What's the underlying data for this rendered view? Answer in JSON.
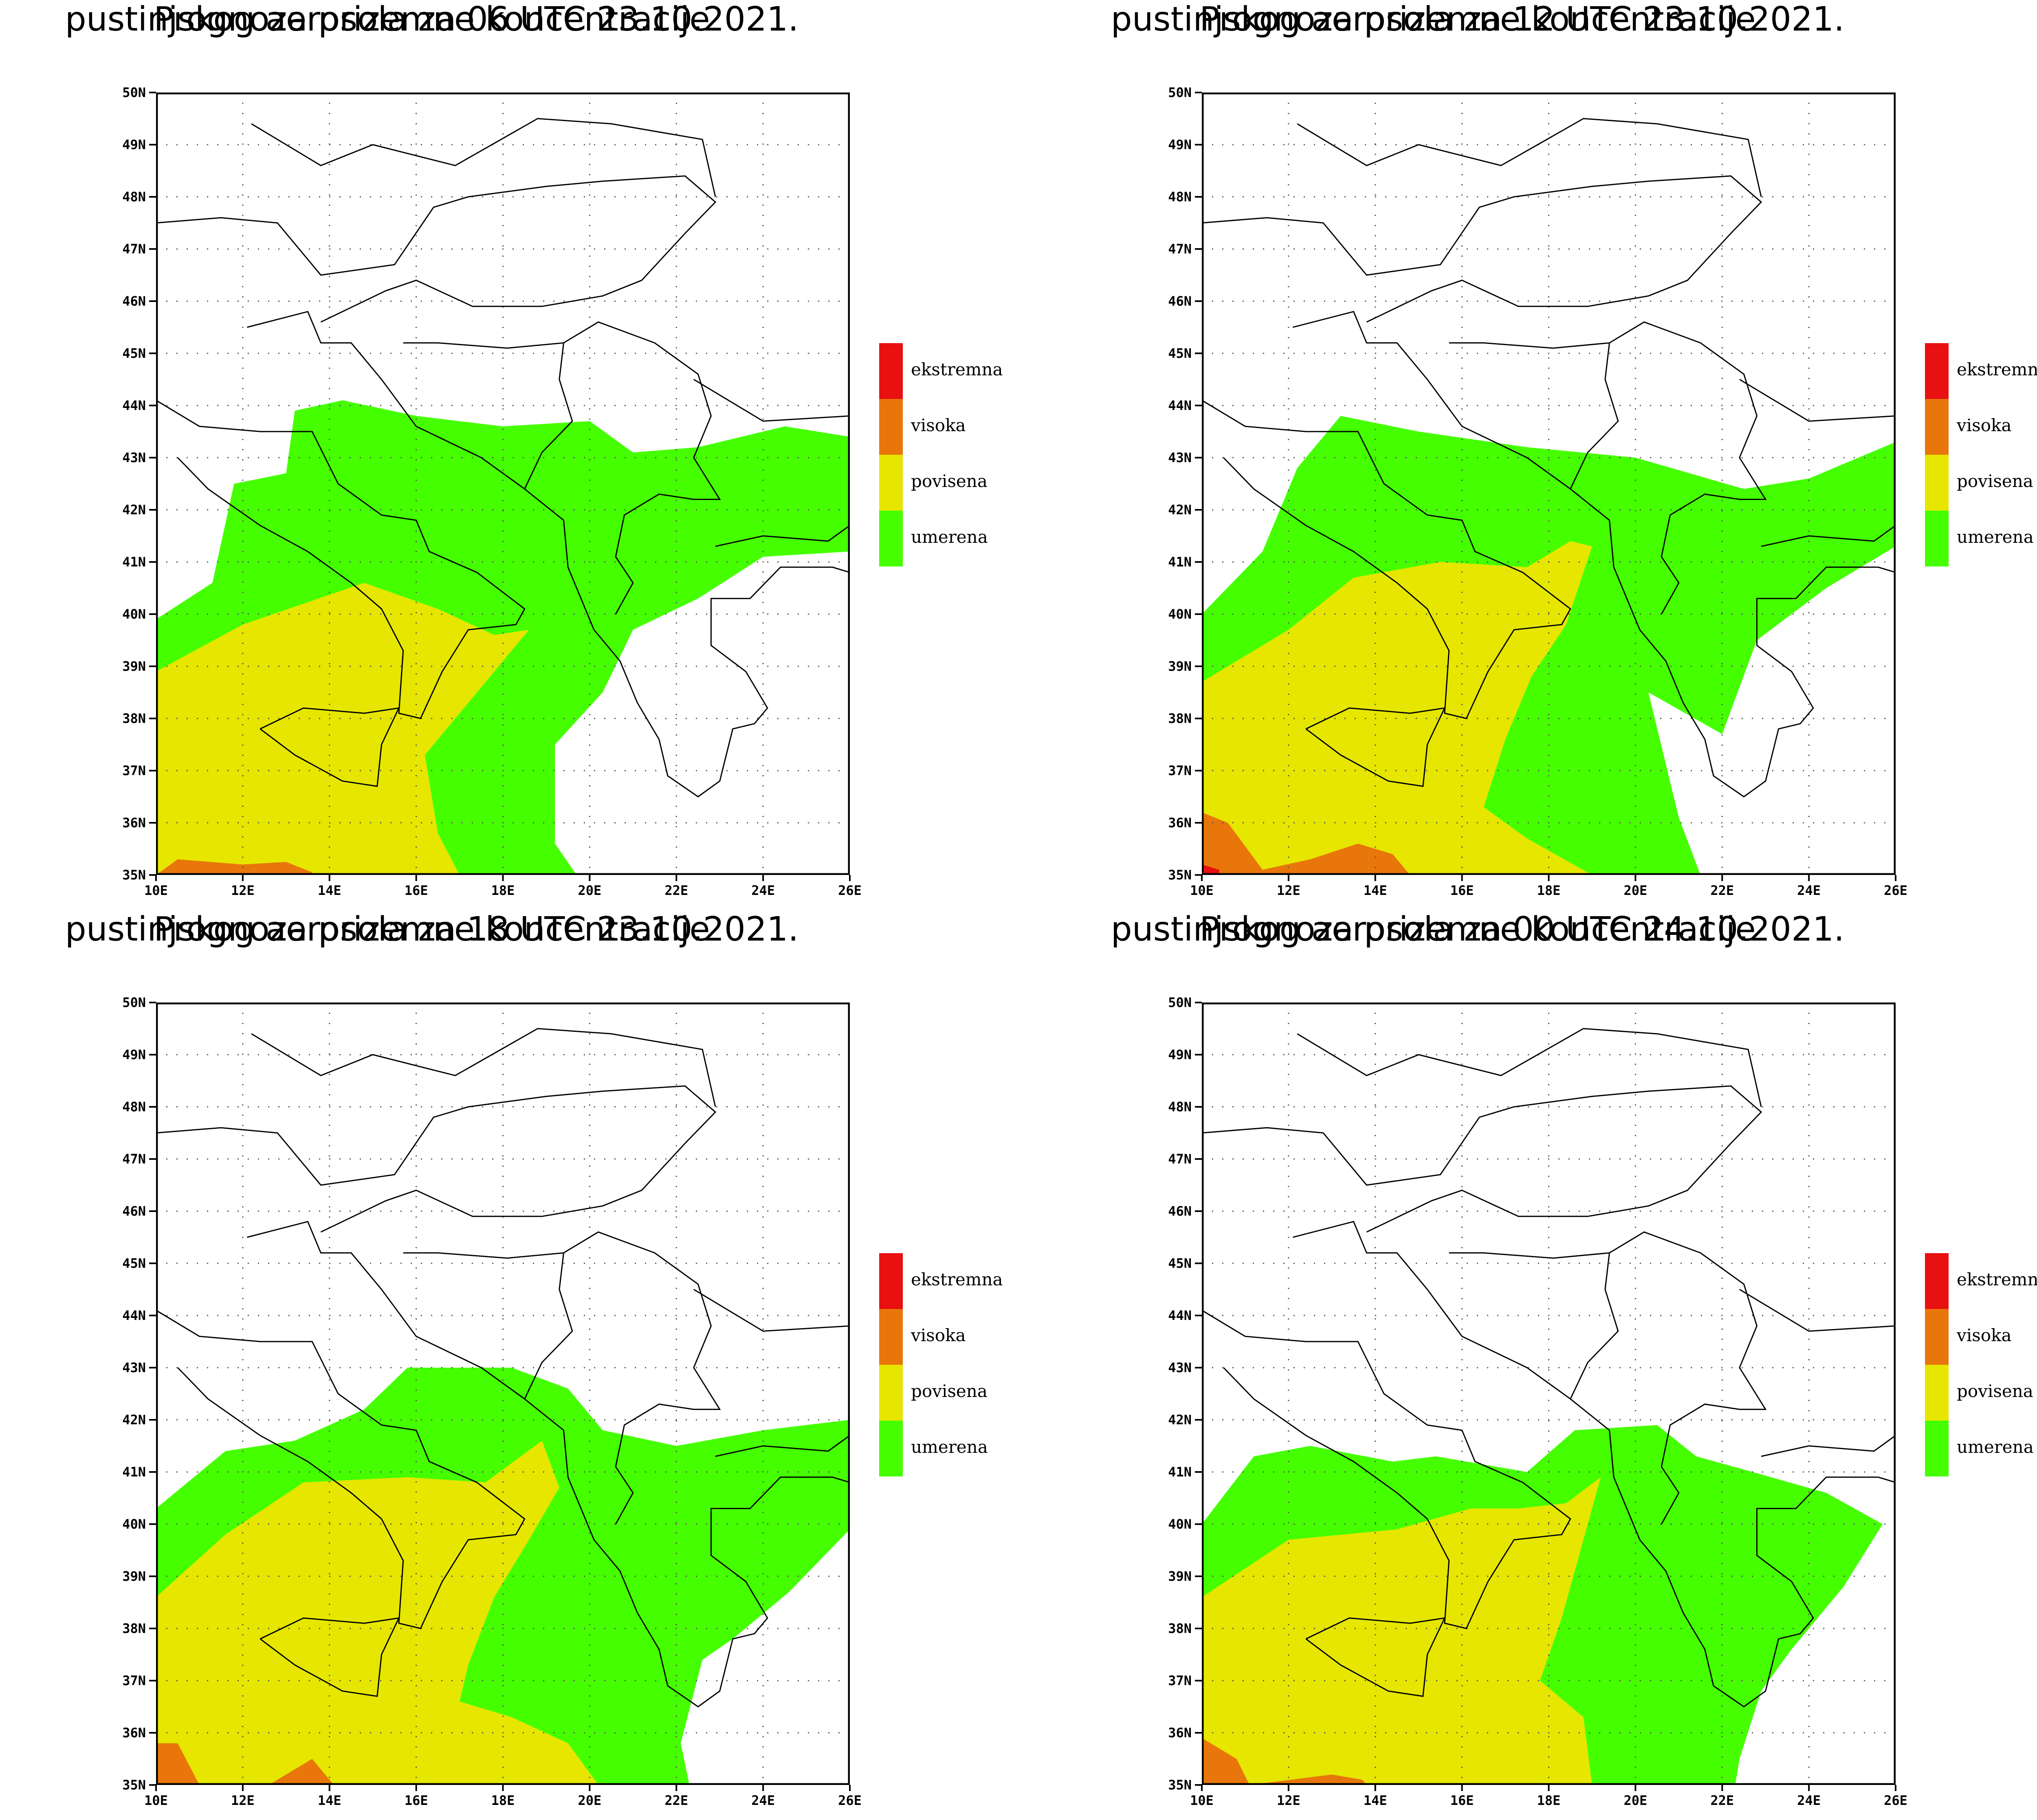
{
  "colors": {
    "ekstremna": "#E81010",
    "visoka": "#E8760A",
    "povisena": "#E6E600",
    "umerena": "#45FF00"
  },
  "legend": [
    {
      "key": "ekstremna",
      "label": "ekstremna"
    },
    {
      "key": "visoka",
      "label": "visoka"
    },
    {
      "key": "povisena",
      "label": "povisena"
    },
    {
      "key": "umerena",
      "label": "umerena"
    }
  ],
  "axes": {
    "lat_labels": [
      "50N",
      "49N",
      "48N",
      "47N",
      "46N",
      "45N",
      "44N",
      "43N",
      "42N",
      "41N",
      "40N",
      "39N",
      "38N",
      "37N",
      "36N",
      "35N"
    ],
    "lon_labels": [
      "10E",
      "12E",
      "14E",
      "16E",
      "18E",
      "20E",
      "22E",
      "24E",
      "26E"
    ]
  },
  "panels": [
    {
      "title_line1": "Prognoza prizemne koncentracije",
      "title_line2": "pustinjskog aerosola za 06 UTC 23.10.2021."
    },
    {
      "title_line1": "Prognoza prizemne koncentracije",
      "title_line2": "pustinjskog aerosola za 12 UTC 23.10.2021."
    },
    {
      "title_line1": "Prognoza prizemne koncentracije",
      "title_line2": "pustinjskog aerosola za 18 UTC 23.10.2021."
    },
    {
      "title_line1": "Prognoza prizemne koncentracije",
      "title_line2": "pustinjskog aerosola za 00 UTC 24.10.2021."
    }
  ]
}
